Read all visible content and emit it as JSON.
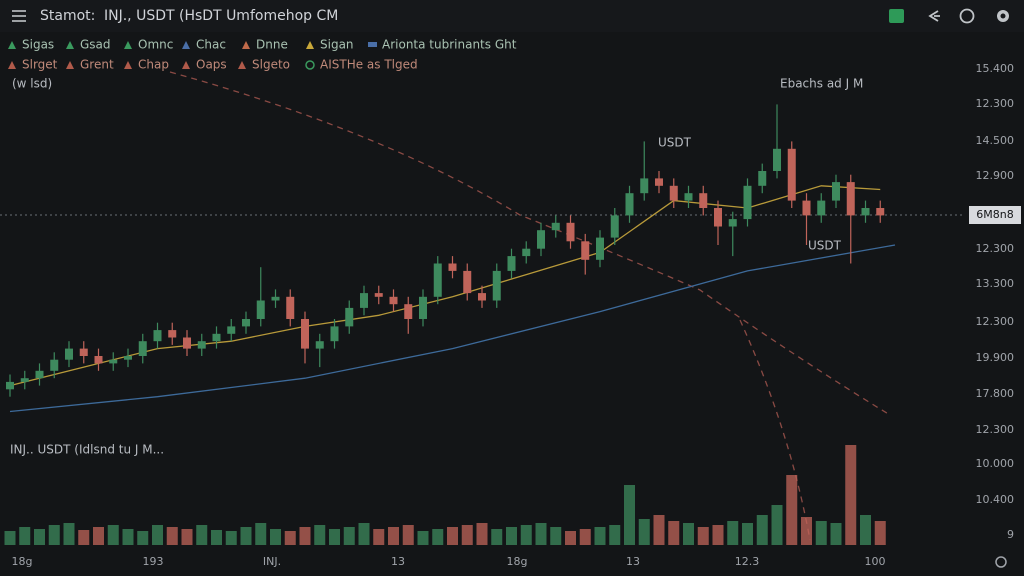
{
  "header": {
    "title": "Stamot:",
    "symbol": "INJ., USDT (HsDT Umfomehop CM"
  },
  "legend": {
    "rows": [
      [
        {
          "text": "Sigas",
          "color": "#3a9a5e"
        },
        {
          "text": "Gsad",
          "color": "#3a9a5e"
        },
        {
          "text": "Omnc",
          "color": "#3a9a5e"
        },
        {
          "text": "Chac",
          "color": "#4a6fa8"
        },
        {
          "text": "Dnne",
          "color": "#c06a4a"
        },
        {
          "text": "Sigan",
          "color": "#c9a83a"
        },
        {
          "text": "Arionta tubrinants Ght",
          "color": "#4a6fa8"
        }
      ],
      [
        {
          "text": "Slrget",
          "color": "#b05a4a"
        },
        {
          "text": "Grent",
          "color": "#b05a4a"
        },
        {
          "text": "Chap",
          "color": "#b05a4a"
        },
        {
          "text": "Oaps",
          "color": "#b05a4a"
        },
        {
          "text": "Slgeto",
          "color": "#b05a4a"
        },
        {
          "text": "AISTHe as Tlged",
          "color": "#3a9a5e"
        }
      ]
    ],
    "sub": "(w lsd)"
  },
  "annotations": {
    "top": "Ebachs ad J M",
    "usdt1": "USDT",
    "usdt2": "USDT",
    "volume_title": "INJ.. USDT (Idlsnd tu J M..."
  },
  "price_label": "6M8n8",
  "axis_labels": [
    "15.400",
    "12.300",
    "14.500",
    "12.900",
    "12.300",
    "13.300",
    "12.300",
    "19.900",
    "17.800",
    "12.300",
    "10.000",
    "10.400",
    "9"
  ],
  "x_labels": [
    "18g",
    "193",
    "INJ.",
    "13",
    "18g",
    "13",
    "12.3",
    "100"
  ],
  "chart_data": {
    "type": "candlestick",
    "up_color": "#3e8a5e",
    "down_color": "#c0645a",
    "ylim": [
      0,
      100
    ],
    "vlim": [
      0,
      100
    ],
    "open": [
      11,
      13,
      14,
      16,
      19,
      22,
      20,
      18,
      19,
      20,
      24,
      27,
      25,
      22,
      24,
      26,
      28,
      30,
      35,
      36,
      30,
      22,
      24,
      28,
      33,
      37,
      36,
      34,
      30,
      36,
      45,
      43,
      37,
      35,
      43,
      47,
      49,
      54,
      56,
      51,
      46,
      52,
      58,
      64,
      68,
      66,
      62,
      64,
      60,
      55,
      57,
      66,
      70,
      76,
      62,
      58,
      62,
      67,
      58,
      60
    ],
    "high": [
      15,
      16,
      18,
      21,
      24,
      24,
      22,
      21,
      22,
      26,
      29,
      29,
      27,
      26,
      28,
      30,
      32,
      44,
      38,
      38,
      32,
      26,
      30,
      35,
      39,
      39,
      38,
      36,
      38,
      47,
      47,
      45,
      39,
      45,
      49,
      51,
      56,
      58,
      58,
      53,
      54,
      60,
      66,
      78,
      70,
      68,
      66,
      66,
      62,
      59,
      68,
      72,
      88,
      78,
      64,
      64,
      69,
      69,
      62,
      62
    ],
    "low": [
      9,
      11,
      12,
      14,
      17,
      18,
      16,
      16,
      17,
      18,
      22,
      23,
      20,
      20,
      22,
      24,
      26,
      28,
      33,
      28,
      18,
      17,
      22,
      26,
      31,
      34,
      32,
      26,
      28,
      34,
      41,
      35,
      33,
      33,
      41,
      45,
      47,
      52,
      49,
      42,
      44,
      50,
      56,
      62,
      64,
      60,
      60,
      58,
      50,
      47,
      55,
      64,
      68,
      60,
      50,
      56,
      60,
      45,
      56,
      56
    ],
    "close": [
      13,
      14,
      16,
      19,
      22,
      20,
      18,
      19,
      20,
      24,
      27,
      25,
      22,
      24,
      26,
      28,
      30,
      35,
      36,
      30,
      22,
      24,
      28,
      33,
      37,
      36,
      34,
      30,
      36,
      45,
      43,
      37,
      35,
      43,
      47,
      49,
      54,
      56,
      51,
      46,
      52,
      58,
      64,
      68,
      66,
      62,
      64,
      60,
      55,
      57,
      66,
      70,
      76,
      62,
      58,
      62,
      67,
      58,
      60,
      58
    ],
    "volume": [
      14,
      18,
      16,
      20,
      22,
      15,
      18,
      20,
      16,
      14,
      20,
      18,
      16,
      20,
      15,
      14,
      18,
      22,
      16,
      14,
      18,
      20,
      16,
      18,
      22,
      16,
      18,
      20,
      14,
      16,
      18,
      20,
      22,
      16,
      18,
      20,
      22,
      18,
      14,
      16,
      18,
      20,
      60,
      26,
      30,
      24,
      22,
      18,
      20,
      24,
      22,
      30,
      40,
      70,
      28,
      24,
      22,
      100,
      30,
      24
    ],
    "overlays": [
      {
        "color": "#b89a3a",
        "x": [
          0,
          5,
          10,
          15,
          20,
          25,
          30,
          35,
          40,
          45,
          50,
          55,
          59
        ],
        "values": [
          12,
          17,
          22,
          24,
          28,
          31,
          36,
          42,
          48,
          62,
          60,
          66,
          65
        ]
      },
      {
        "color": "#3d6a9a",
        "x": [
          0,
          10,
          20,
          30,
          40,
          50,
          60
        ],
        "values": [
          5,
          9,
          14,
          22,
          32,
          43,
          50
        ]
      }
    ]
  }
}
